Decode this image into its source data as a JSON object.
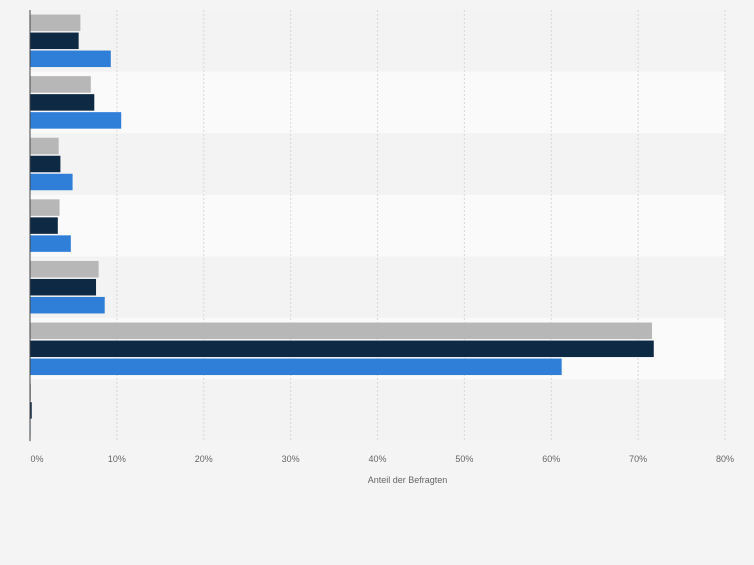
{
  "chart_data": {
    "type": "bar",
    "orientation": "horizontal",
    "title": "",
    "xlabel": "Anteil der Befragten",
    "ylabel": "",
    "categories": [
      "",
      "",
      "",
      "",
      "",
      "",
      ""
    ],
    "series": [
      {
        "color": "#b7b7b7",
        "values": [
          5.8,
          7.0,
          3.3,
          3.4,
          7.9,
          71.6,
          0.1
        ]
      },
      {
        "color": "#0e2944",
        "values": [
          5.6,
          7.4,
          3.5,
          3.2,
          7.6,
          71.8,
          0.2
        ]
      },
      {
        "color": "#2f7ed8",
        "values": [
          9.3,
          10.5,
          4.9,
          4.7,
          8.6,
          61.2,
          0.0
        ]
      }
    ],
    "xlim": [
      0,
      80
    ],
    "xticks": [
      "0%",
      "10%",
      "20%",
      "30%",
      "40%",
      "50%",
      "60%",
      "70%",
      "80%"
    ],
    "grid": true,
    "legend": "none",
    "colors": {
      "background": "#f4f4f4",
      "band_light": "#fafafa",
      "band_dark": "#f3f3f3",
      "grid": "#d8d8d8",
      "axis": "#444444"
    }
  }
}
